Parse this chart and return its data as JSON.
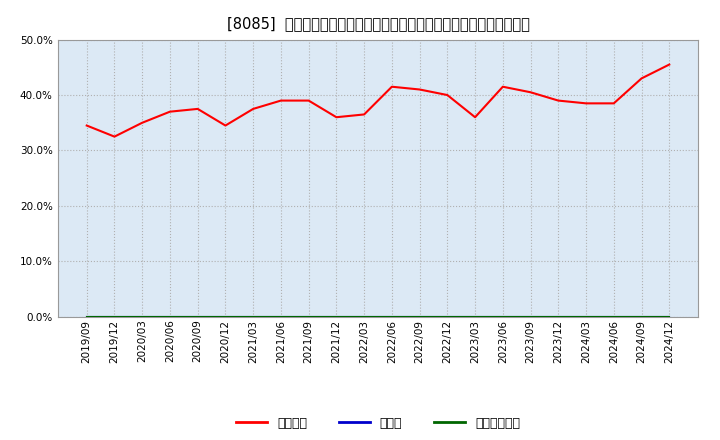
{
  "title": "[8085]  自己資本、のれん、繰延税金資産の総資産に対する比率の推移",
  "x_labels": [
    "2019/09",
    "2019/12",
    "2020/03",
    "2020/06",
    "2020/09",
    "2020/12",
    "2021/03",
    "2021/06",
    "2021/09",
    "2021/12",
    "2022/03",
    "2022/06",
    "2022/09",
    "2022/12",
    "2023/03",
    "2023/06",
    "2023/09",
    "2023/12",
    "2024/03",
    "2024/06",
    "2024/09",
    "2024/12"
  ],
  "equity_ratio": [
    34.5,
    32.5,
    35.0,
    37.0,
    37.5,
    34.5,
    37.5,
    39.0,
    39.0,
    36.0,
    36.5,
    41.5,
    41.0,
    40.0,
    36.0,
    41.5,
    40.5,
    39.0,
    38.5,
    38.5,
    43.0,
    45.5
  ],
  "noren_ratio": [
    0.0,
    0.0,
    0.0,
    0.0,
    0.0,
    0.0,
    0.0,
    0.0,
    0.0,
    0.0,
    0.0,
    0.0,
    0.0,
    0.0,
    0.0,
    0.0,
    0.0,
    0.0,
    0.0,
    0.0,
    0.0,
    0.0
  ],
  "deferred_tax_ratio": [
    0.0,
    0.0,
    0.0,
    0.0,
    0.0,
    0.0,
    0.0,
    0.0,
    0.0,
    0.0,
    0.0,
    0.0,
    0.0,
    0.0,
    0.0,
    0.0,
    0.0,
    0.0,
    0.0,
    0.0,
    0.0,
    0.0
  ],
  "line_colors": [
    "#ff0000",
    "#0000cc",
    "#006600"
  ],
  "legend_labels": [
    "自己資本",
    "のれん",
    "繰延税金資産"
  ],
  "ylim": [
    0.0,
    50.0
  ],
  "yticks": [
    0.0,
    10.0,
    20.0,
    30.0,
    40.0,
    50.0
  ],
  "background_color": "#ffffff",
  "plot_bg_color": "#dce9f5",
  "grid_color": "#b0b0b0",
  "title_fontsize": 10.5,
  "axis_fontsize": 7.5,
  "legend_fontsize": 9.0
}
